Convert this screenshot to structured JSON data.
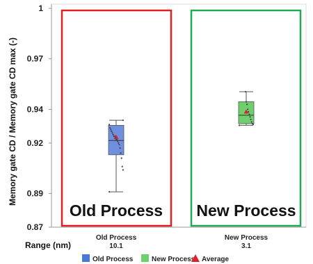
{
  "chart_data": {
    "type": "box",
    "ylabel": "Memory gate CD / Memory gate CD max (-)",
    "ylim": [
      0.87,
      1.0
    ],
    "yticks": [
      "1",
      "0.97",
      "0.94",
      "0.92",
      "0.89",
      "0.87"
    ],
    "ytick_values": [
      1.0,
      0.97,
      0.94,
      0.92,
      0.89,
      0.87
    ],
    "range_label": "Range (nm)",
    "categories": [
      {
        "name": "Old Process",
        "range_value": "10.1",
        "color": "#6f8fdf",
        "frame_color": "#e02020",
        "annotation": "Old Process",
        "box": {
          "whisker_low": 0.891,
          "q1": 0.913,
          "median": 0.9215,
          "q3": 0.9305,
          "whisker_high": 0.9335
        },
        "average": 0.9235,
        "points": [
          0.891,
          0.904,
          0.906,
          0.911,
          0.914,
          0.917,
          0.919,
          0.92,
          0.921,
          0.922,
          0.922,
          0.923,
          0.924,
          0.924,
          0.925,
          0.926,
          0.927,
          0.928,
          0.929,
          0.931,
          0.9335
        ]
      },
      {
        "name": "New Process",
        "range_value": "3.1",
        "color": "#6dd06d",
        "frame_color": "#22aa55",
        "annotation": "New Process",
        "box": {
          "whisker_low": 0.9305,
          "q1": 0.9315,
          "median": 0.9365,
          "q3": 0.9445,
          "whisker_high": 0.9505
        },
        "average": 0.9385,
        "points": [
          0.9305,
          0.931,
          0.9315,
          0.9325,
          0.934,
          0.9355,
          0.937,
          0.9385,
          0.94,
          0.943,
          0.9445,
          0.9505
        ]
      }
    ],
    "legend": [
      {
        "label": "Old Process",
        "marker": "square",
        "color": "#4a78d8"
      },
      {
        "label": "New Process",
        "marker": "square",
        "color": "#6dd06d"
      },
      {
        "label": "Average",
        "marker": "triangle",
        "color": "#e0202a"
      }
    ],
    "legend_position": "bottom-center",
    "grid": false
  }
}
